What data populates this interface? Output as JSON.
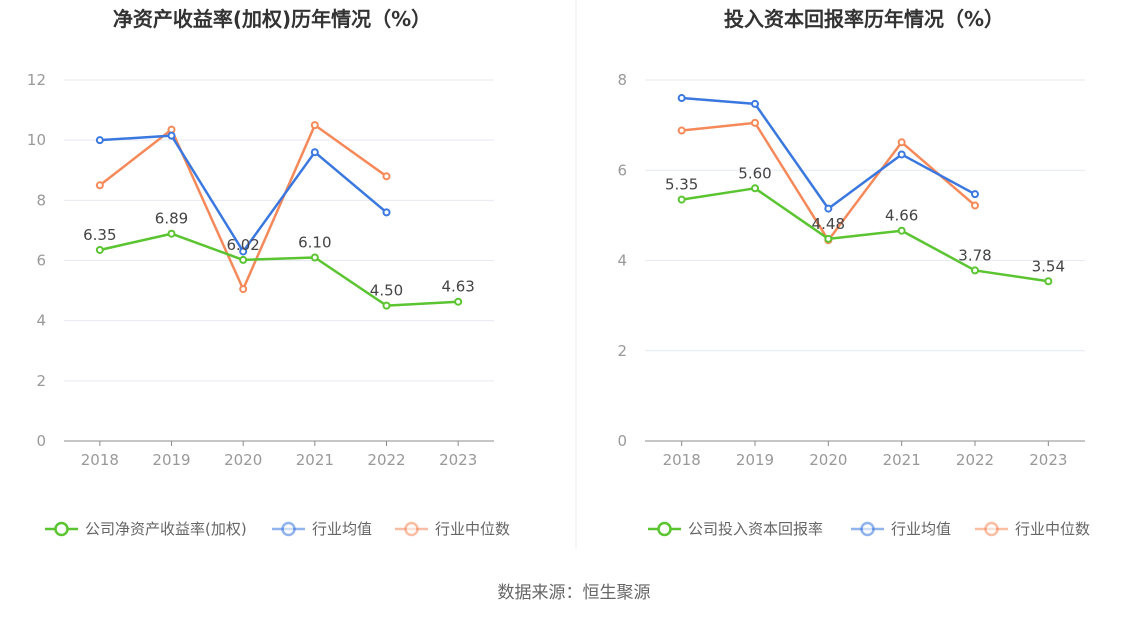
{
  "colors": {
    "company": "#5ac431",
    "industry_avg": "#3a78e0",
    "industry_median": "#f6895a"
  },
  "chart_data": [
    {
      "type": "line",
      "title": "净资产收益率(加权)历年情况（%）",
      "x": [
        "2018",
        "2019",
        "2020",
        "2021",
        "2022",
        "2023"
      ],
      "ylim": [
        0,
        12
      ],
      "yticks": [
        "0",
        "2",
        "4",
        "6",
        "8",
        "10",
        "12"
      ],
      "series": [
        {
          "name": "公司净资产收益率(加权)",
          "values": [
            6.35,
            6.89,
            6.02,
            6.1,
            4.5,
            4.63
          ],
          "labels": [
            "6.35",
            "6.89",
            "6.02",
            "6.10",
            "4.50",
            "4.63"
          ]
        },
        {
          "name": "行业均值",
          "values": [
            10.0,
            10.15,
            6.3,
            9.6,
            7.6,
            null
          ]
        },
        {
          "name": "行业中位数",
          "values": [
            8.5,
            10.35,
            5.05,
            10.5,
            8.8,
            null
          ]
        }
      ]
    },
    {
      "type": "line",
      "title": "投入资本回报率历年情况（%）",
      "x": [
        "2018",
        "2019",
        "2020",
        "2021",
        "2022",
        "2023"
      ],
      "ylim": [
        0,
        8
      ],
      "yticks": [
        "0",
        "2",
        "4",
        "6",
        "8"
      ],
      "series": [
        {
          "name": "公司投入资本回报率",
          "values": [
            5.35,
            5.6,
            4.48,
            4.66,
            3.78,
            3.54
          ],
          "labels": [
            "5.35",
            "5.60",
            "4.48",
            "4.66",
            "3.78",
            "3.54"
          ]
        },
        {
          "name": "行业均值",
          "values": [
            7.6,
            7.47,
            5.15,
            6.35,
            5.47,
            null
          ]
        },
        {
          "name": "行业中位数",
          "values": [
            6.88,
            7.05,
            4.45,
            6.62,
            5.22,
            null
          ]
        }
      ]
    }
  ],
  "source": "数据来源：恒生聚源"
}
